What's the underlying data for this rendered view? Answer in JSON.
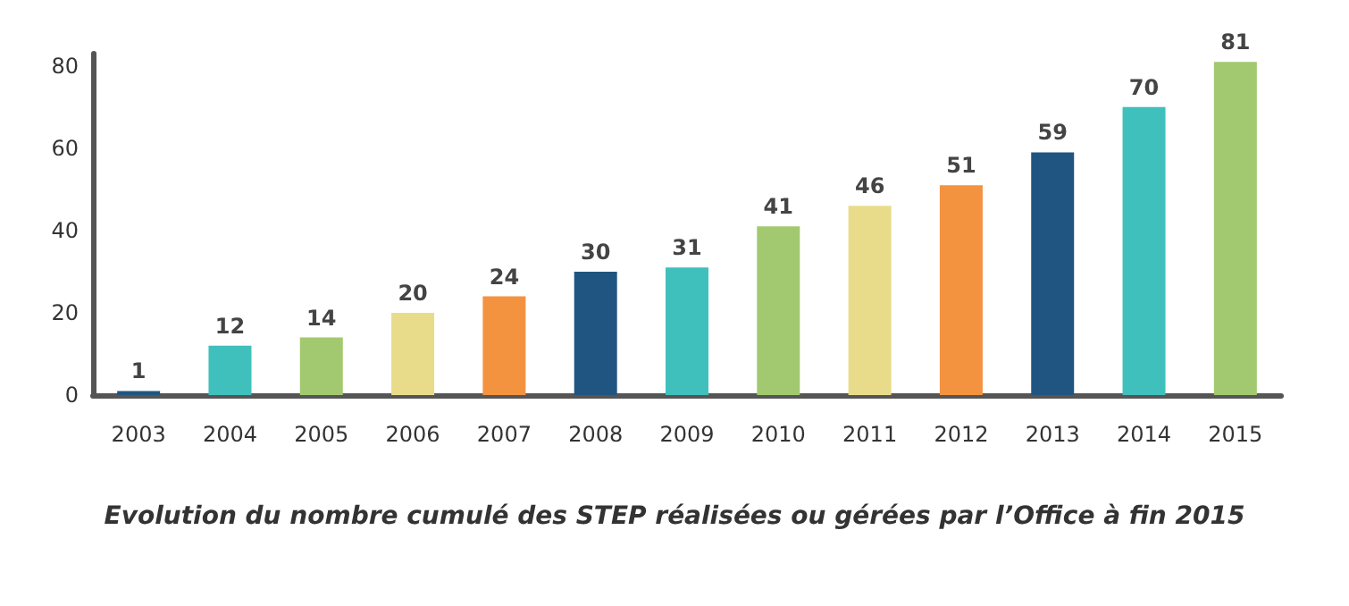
{
  "chart_data": {
    "type": "bar",
    "title": "Evolution du nombre cumulé des STEP réalisées ou gérées par l’Office à fin 2015",
    "categories": [
      "2003",
      "2004",
      "2005",
      "2006",
      "2007",
      "2008",
      "2009",
      "2010",
      "2011",
      "2012",
      "2013",
      "2014",
      "2015"
    ],
    "values": [
      1,
      12,
      14,
      20,
      24,
      30,
      31,
      41,
      46,
      51,
      59,
      70,
      81
    ],
    "colors": [
      "#1f5580",
      "#3fc0bc",
      "#a2c96f",
      "#e8dc8a",
      "#f39340",
      "#1f5580",
      "#3fc0bc",
      "#a2c96f",
      "#e8dc8a",
      "#f39340",
      "#1f5580",
      "#3fc0bc",
      "#a2c96f"
    ],
    "ylim": [
      0,
      83
    ],
    "yticks": [
      0,
      20,
      40,
      60,
      80
    ],
    "grid": false,
    "data_labels": true
  }
}
